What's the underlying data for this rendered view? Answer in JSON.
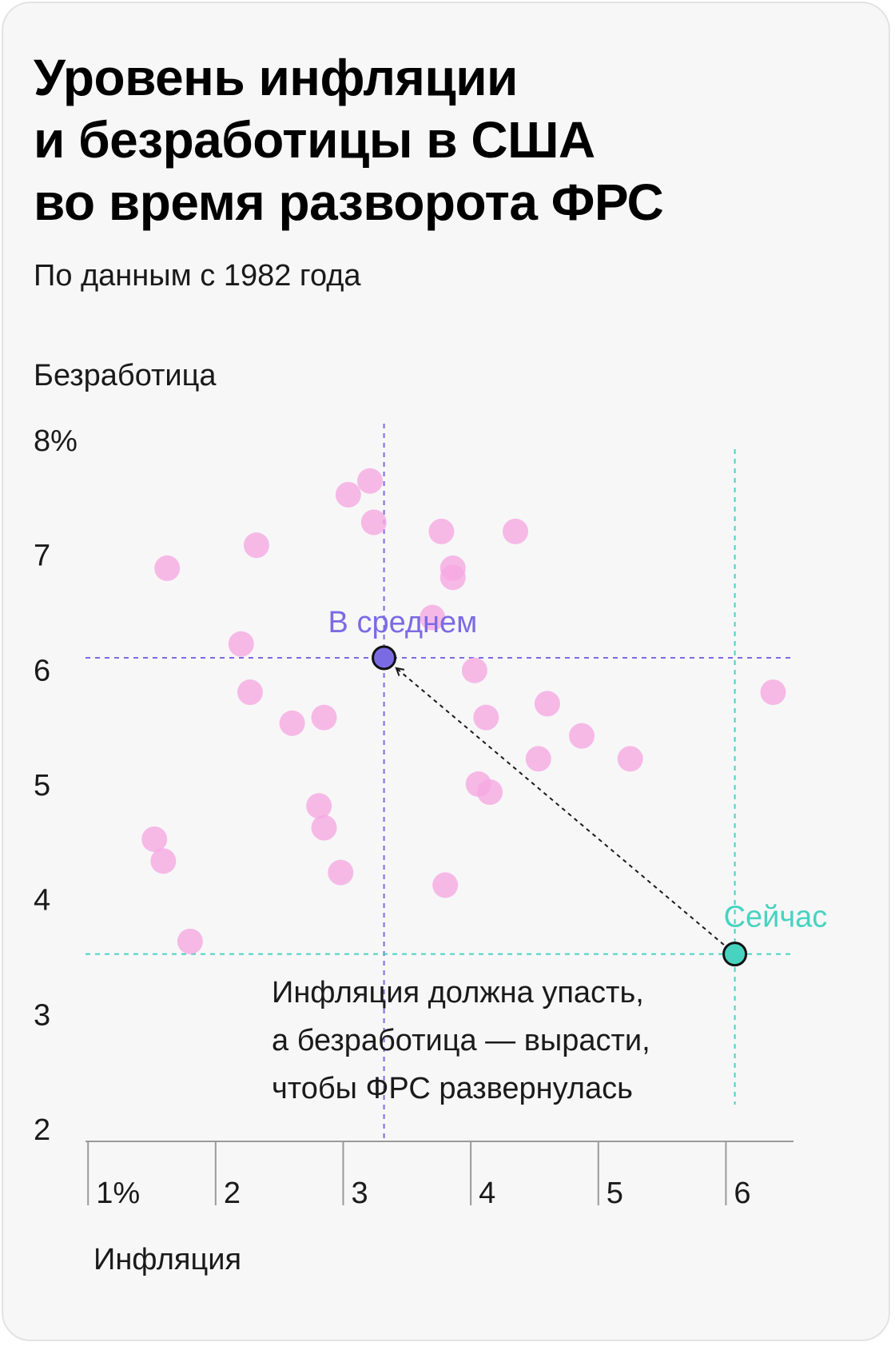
{
  "title_lines": [
    "Уровень инфляции",
    "и безработицы в США",
    "во время разворота ФРС"
  ],
  "subtitle": "По данным с 1982 года",
  "colors": {
    "points": "#f6a8e0",
    "average": "#7b6be3",
    "current": "#48d3c1",
    "axis": "#9a9a9a",
    "text": "#1a1a1a"
  },
  "chart_data": {
    "type": "scatter",
    "ylabel": "Безработица",
    "xlabel": "Инфляция",
    "xlim": [
      0.98,
      6.53
    ],
    "ylim": [
      2,
      8
    ],
    "x_ticks": [
      {
        "value": 1,
        "label": "1%"
      },
      {
        "value": 2,
        "label": "2"
      },
      {
        "value": 3,
        "label": "3"
      },
      {
        "value": 4,
        "label": "4"
      },
      {
        "value": 5,
        "label": "5"
      },
      {
        "value": 6,
        "label": "6"
      }
    ],
    "y_ticks": [
      {
        "value": 8,
        "label": "8%"
      },
      {
        "value": 7,
        "label": "7"
      },
      {
        "value": 6,
        "label": "6"
      },
      {
        "value": 5,
        "label": "5"
      },
      {
        "value": 4,
        "label": "4"
      },
      {
        "value": 3,
        "label": "3"
      },
      {
        "value": 2,
        "label": "2"
      }
    ],
    "points": [
      {
        "x": 1.62,
        "y": 6.88
      },
      {
        "x": 2.32,
        "y": 7.08
      },
      {
        "x": 3.04,
        "y": 7.52
      },
      {
        "x": 3.21,
        "y": 7.64
      },
      {
        "x": 3.24,
        "y": 7.28
      },
      {
        "x": 3.77,
        "y": 7.2
      },
      {
        "x": 4.35,
        "y": 7.2
      },
      {
        "x": 3.86,
        "y": 6.88
      },
      {
        "x": 3.86,
        "y": 6.8
      },
      {
        "x": 2.2,
        "y": 6.22
      },
      {
        "x": 3.7,
        "y": 6.45
      },
      {
        "x": 4.03,
        "y": 5.99
      },
      {
        "x": 2.27,
        "y": 5.8
      },
      {
        "x": 2.6,
        "y": 5.53
      },
      {
        "x": 2.85,
        "y": 5.58
      },
      {
        "x": 4.12,
        "y": 5.58
      },
      {
        "x": 4.6,
        "y": 5.7
      },
      {
        "x": 4.87,
        "y": 5.42
      },
      {
        "x": 4.53,
        "y": 5.22
      },
      {
        "x": 5.25,
        "y": 5.22
      },
      {
        "x": 6.37,
        "y": 5.8
      },
      {
        "x": 4.06,
        "y": 5.0
      },
      {
        "x": 4.15,
        "y": 4.93
      },
      {
        "x": 2.81,
        "y": 4.81
      },
      {
        "x": 2.85,
        "y": 4.62
      },
      {
        "x": 1.52,
        "y": 4.52
      },
      {
        "x": 1.59,
        "y": 4.33
      },
      {
        "x": 2.98,
        "y": 4.23
      },
      {
        "x": 3.8,
        "y": 4.12
      },
      {
        "x": 1.8,
        "y": 3.63
      }
    ],
    "average": {
      "x": 3.32,
      "y": 6.1,
      "label": "В среднем"
    },
    "current": {
      "x": 6.07,
      "y": 3.52,
      "label": "Сейчас"
    },
    "annotation_lines": [
      "Инфляция должна упасть,",
      "а безработица — вырасти,",
      "чтобы ФРС развернулась"
    ]
  }
}
